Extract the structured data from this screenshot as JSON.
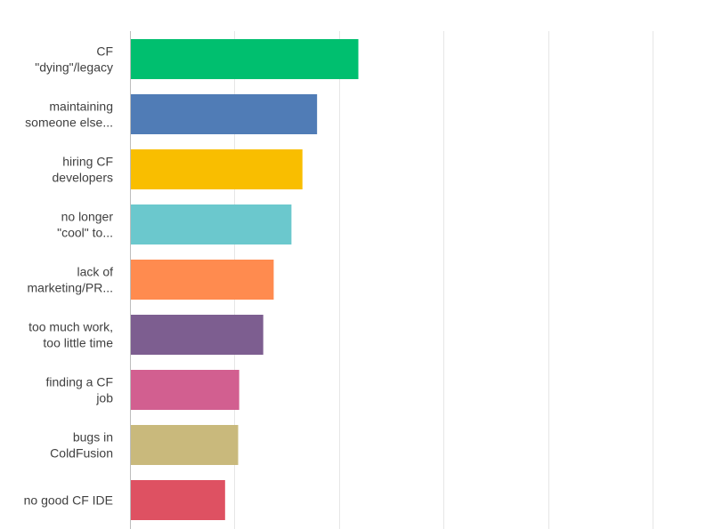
{
  "chart_data": {
    "type": "bar",
    "orientation": "horizontal",
    "title": "",
    "xlabel": "",
    "ylabel": "",
    "xlim": [
      0,
      100
    ],
    "grid": true,
    "legend": "none",
    "categories": [
      [
        "CF",
        "\"dying\"/legacy"
      ],
      [
        "maintaining",
        "someone else..."
      ],
      [
        "hiring CF",
        "developers"
      ],
      [
        "no longer",
        "\"cool\" to..."
      ],
      [
        "lack of",
        "marketing/PR..."
      ],
      [
        "too much work,",
        "too little time"
      ],
      [
        "finding a CF",
        "job"
      ],
      [
        "bugs in",
        "ColdFusion"
      ],
      [
        "no good CF IDE"
      ]
    ],
    "values": [
      43.7,
      35.8,
      33.0,
      30.9,
      27.5,
      25.5,
      20.9,
      20.7,
      18.2
    ],
    "colors": [
      "#00bf6f",
      "#507cb6",
      "#f9be00",
      "#6bc8cd",
      "#ff8b4f",
      "#7d5e90",
      "#d25f90",
      "#c9b97c",
      "#de5162"
    ]
  }
}
